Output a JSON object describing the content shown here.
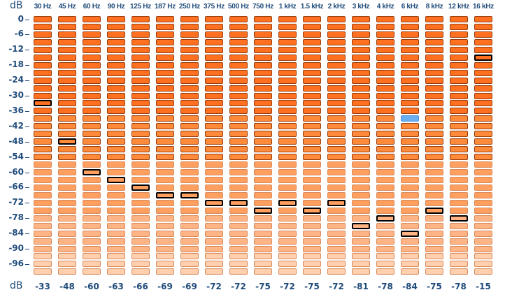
{
  "labels": {
    "db_top": "dB",
    "db_bottom": "dB"
  },
  "bands": [
    "30 Hz",
    "45 Hz",
    "60 Hz",
    "90 Hz",
    "125 Hz",
    "187 Hz",
    "250 Hz",
    "375 Hz",
    "500 Hz",
    "750 Hz",
    "1 kHz",
    "1.5 kHz",
    "2 kHz",
    "3 kHz",
    "4 kHz",
    "6 kHz",
    "8 kHz",
    "12 kHz",
    "16 kHz"
  ],
  "db_ticks": [
    "0",
    "-6",
    "-12",
    "-18",
    "-24",
    "-30",
    "-36",
    "-42",
    "-48",
    "-54",
    "-60",
    "-66",
    "-72",
    "-78",
    "-84",
    "-90",
    "-96"
  ],
  "readings": [
    "-33",
    "-48",
    "-60",
    "-63",
    "-66",
    "-69",
    "-69",
    "-72",
    "-72",
    "-75",
    "-72",
    "-75",
    "-72",
    "-81",
    "-78",
    "-84",
    "-75",
    "-78",
    "-15"
  ],
  "peak_rows": [
    11,
    16,
    20,
    21,
    22,
    23,
    23,
    24,
    24,
    25,
    24,
    25,
    24,
    27,
    26,
    28,
    25,
    26,
    5
  ],
  "marker": {
    "band": 15,
    "row": 13,
    "color": "#6aaef0"
  },
  "segment_count": 34,
  "colors": {
    "text": "#1f4b7a",
    "peak_border": "#000000",
    "segment_border": "#9a3d0c",
    "levels": [
      "#ff7020",
      "#ff8a3a",
      "#ffa060",
      "#ffb485",
      "#ffcfae"
    ]
  }
}
